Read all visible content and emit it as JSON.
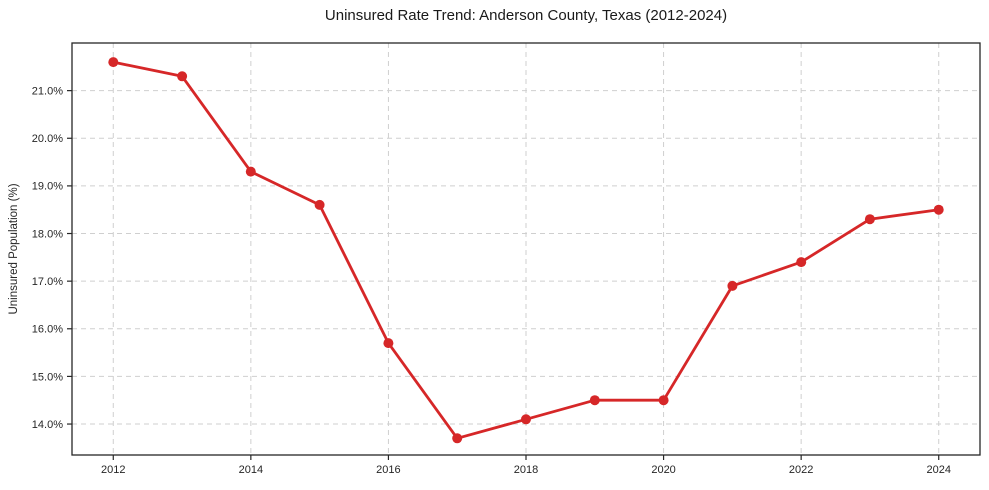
{
  "chart_data": {
    "type": "line",
    "title": "Uninsured Rate Trend: Anderson County, Texas (2012-2024)",
    "xlabel": "",
    "ylabel": "Uninsured Population (%)",
    "x": [
      2012,
      2013,
      2014,
      2015,
      2016,
      2017,
      2018,
      2019,
      2020,
      2021,
      2022,
      2023,
      2024
    ],
    "y": [
      21.6,
      21.3,
      19.3,
      18.6,
      15.7,
      13.7,
      14.1,
      14.5,
      14.5,
      16.9,
      17.4,
      18.3,
      18.5
    ],
    "xlim": [
      2011.4,
      2024.6
    ],
    "ylim": [
      13.35,
      22.0
    ],
    "xticks": [
      2012,
      2014,
      2016,
      2018,
      2020,
      2022,
      2024
    ],
    "xtick_labels": [
      "2012",
      "2014",
      "2016",
      "2018",
      "2020",
      "2022",
      "2024"
    ],
    "yticks": [
      14,
      15,
      16,
      17,
      18,
      19,
      20,
      21
    ],
    "ytick_labels": [
      "14.0%",
      "15.0%",
      "16.0%",
      "17.0%",
      "18.0%",
      "19.0%",
      "20.0%",
      "21.0%"
    ],
    "grid": true,
    "legend": "none",
    "line_color": "#d62728",
    "marker_color": "#d62728",
    "grid_color": "#cfcfcf",
    "spine_color": "#262626",
    "text_color": "#262626",
    "line_width": 2.8,
    "marker_radius": 5
  }
}
